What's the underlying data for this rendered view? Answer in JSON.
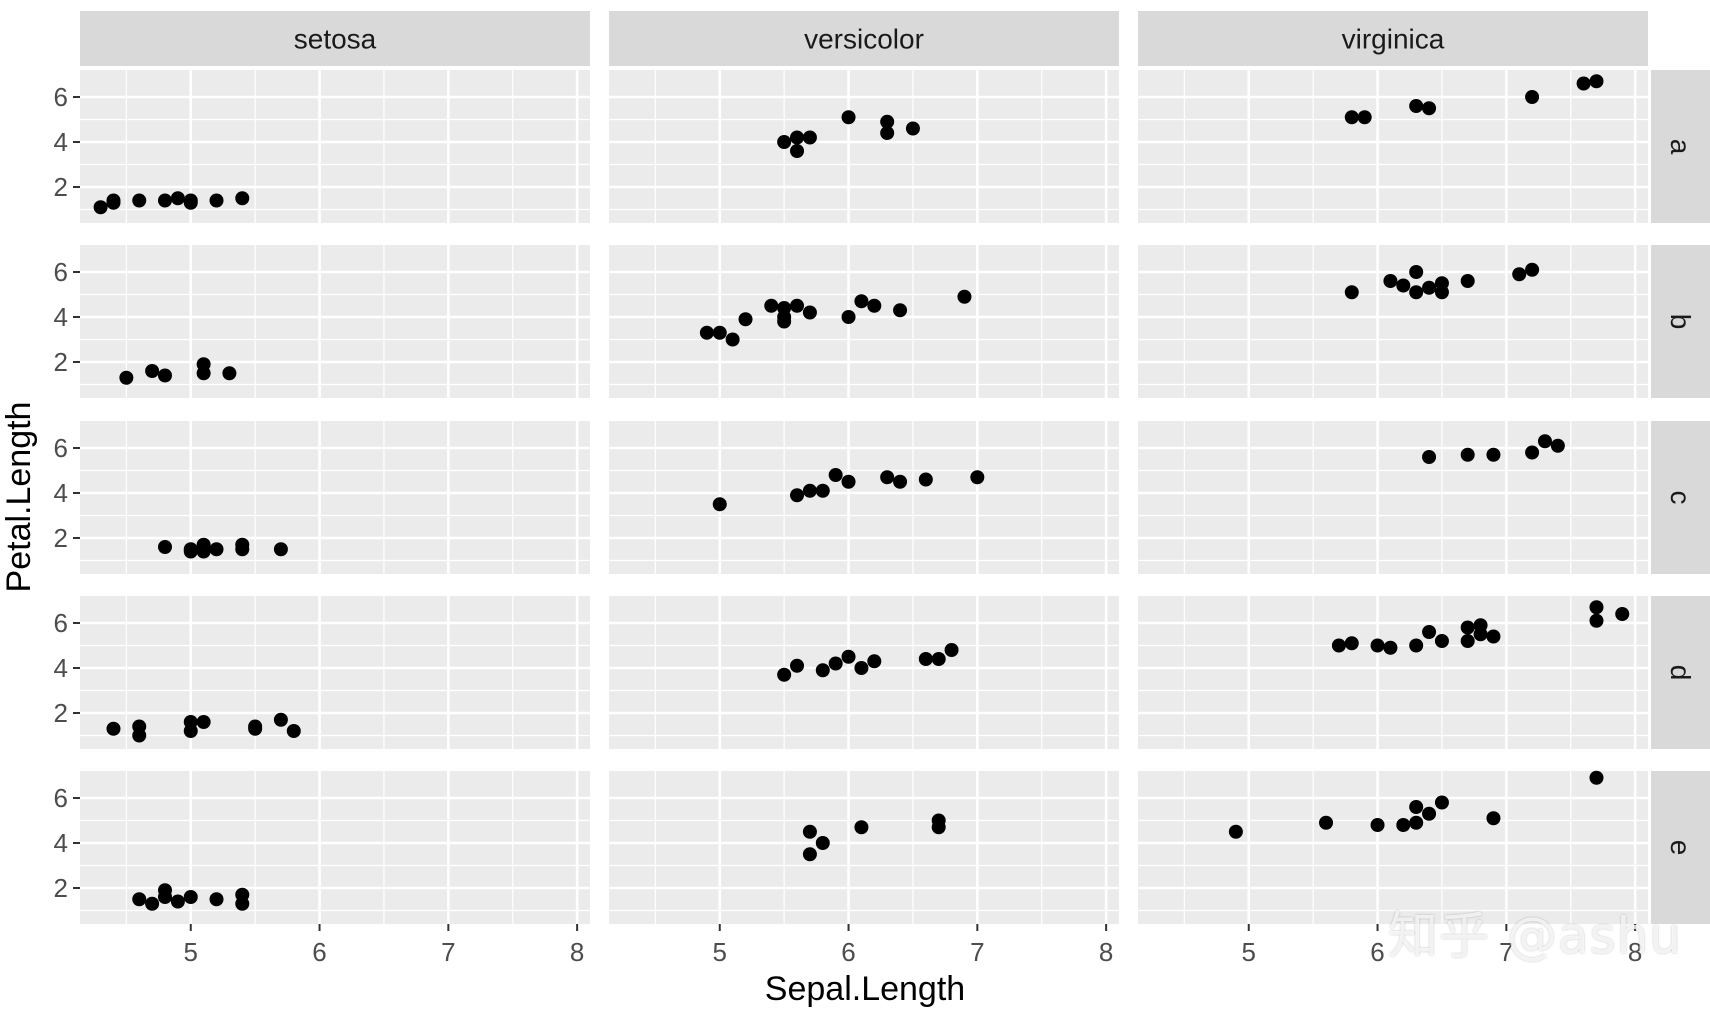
{
  "chart_data": {
    "type": "scatter",
    "xlabel": "Sepal.Length",
    "ylabel": "Petal.Length",
    "col_facets": [
      "setosa",
      "versicolor",
      "virginica"
    ],
    "row_facets": [
      "a",
      "b",
      "c",
      "d",
      "e"
    ],
    "xlim": [
      4.14,
      8.1
    ],
    "ylim": [
      0.4,
      7.2
    ],
    "xticks": [
      5,
      6,
      7,
      8
    ],
    "yticks": [
      2,
      4,
      6
    ],
    "grid": true,
    "point_color": "#000000",
    "panel_background": "#ebebeb",
    "strip_background": "#d9d9d9",
    "panels": [
      {
        "species": "setosa",
        "group": "a",
        "points": [
          [
            4.3,
            1.1
          ],
          [
            4.4,
            1.3
          ],
          [
            4.4,
            1.4
          ],
          [
            4.6,
            1.4
          ],
          [
            4.8,
            1.4
          ],
          [
            4.9,
            1.5
          ],
          [
            5.0,
            1.3
          ],
          [
            5.0,
            1.4
          ],
          [
            5.2,
            1.4
          ],
          [
            5.4,
            1.5
          ]
        ]
      },
      {
        "species": "versicolor",
        "group": "a",
        "points": [
          [
            5.5,
            4.0
          ],
          [
            5.6,
            3.6
          ],
          [
            5.6,
            4.2
          ],
          [
            5.7,
            4.2
          ],
          [
            6.0,
            5.1
          ],
          [
            6.3,
            4.4
          ],
          [
            6.3,
            4.9
          ],
          [
            6.5,
            4.6
          ]
        ]
      },
      {
        "species": "virginica",
        "group": "a",
        "points": [
          [
            5.8,
            5.1
          ],
          [
            5.9,
            5.1
          ],
          [
            6.3,
            5.6
          ],
          [
            6.4,
            5.5
          ],
          [
            7.2,
            6.0
          ],
          [
            7.6,
            6.6
          ],
          [
            7.7,
            6.7
          ]
        ]
      },
      {
        "species": "setosa",
        "group": "b",
        "points": [
          [
            4.5,
            1.3
          ],
          [
            4.7,
            1.6
          ],
          [
            4.8,
            1.4
          ],
          [
            5.1,
            1.5
          ],
          [
            5.1,
            1.9
          ],
          [
            5.3,
            1.5
          ]
        ]
      },
      {
        "species": "versicolor",
        "group": "b",
        "points": [
          [
            4.9,
            3.3
          ],
          [
            5.0,
            3.3
          ],
          [
            5.1,
            3.0
          ],
          [
            5.2,
            3.9
          ],
          [
            5.4,
            4.5
          ],
          [
            5.5,
            3.8
          ],
          [
            5.5,
            4.0
          ],
          [
            5.5,
            4.4
          ],
          [
            5.6,
            4.5
          ],
          [
            5.7,
            4.2
          ],
          [
            6.0,
            4.0
          ],
          [
            6.1,
            4.7
          ],
          [
            6.2,
            4.5
          ],
          [
            6.4,
            4.3
          ],
          [
            6.9,
            4.9
          ]
        ]
      },
      {
        "species": "virginica",
        "group": "b",
        "points": [
          [
            5.8,
            5.1
          ],
          [
            6.1,
            5.6
          ],
          [
            6.2,
            5.4
          ],
          [
            6.3,
            6.0
          ],
          [
            6.3,
            5.1
          ],
          [
            6.4,
            5.3
          ],
          [
            6.5,
            5.5
          ],
          [
            6.5,
            5.1
          ],
          [
            6.7,
            5.6
          ],
          [
            7.1,
            5.9
          ],
          [
            7.2,
            6.1
          ]
        ]
      },
      {
        "species": "setosa",
        "group": "c",
        "points": [
          [
            4.8,
            1.6
          ],
          [
            5.0,
            1.4
          ],
          [
            5.0,
            1.5
          ],
          [
            5.1,
            1.4
          ],
          [
            5.1,
            1.7
          ],
          [
            5.1,
            1.5
          ],
          [
            5.2,
            1.5
          ],
          [
            5.4,
            1.7
          ],
          [
            5.4,
            1.5
          ],
          [
            5.7,
            1.5
          ]
        ]
      },
      {
        "species": "versicolor",
        "group": "c",
        "points": [
          [
            5.0,
            3.5
          ],
          [
            5.6,
            3.9
          ],
          [
            5.7,
            4.1
          ],
          [
            5.8,
            4.1
          ],
          [
            5.9,
            4.8
          ],
          [
            6.0,
            4.5
          ],
          [
            6.3,
            4.7
          ],
          [
            6.4,
            4.5
          ],
          [
            6.6,
            4.6
          ],
          [
            7.0,
            4.7
          ]
        ]
      },
      {
        "species": "virginica",
        "group": "c",
        "points": [
          [
            6.4,
            5.6
          ],
          [
            6.7,
            5.7
          ],
          [
            6.9,
            5.7
          ],
          [
            7.2,
            5.8
          ],
          [
            7.3,
            6.3
          ],
          [
            7.4,
            6.1
          ]
        ]
      },
      {
        "species": "setosa",
        "group": "d",
        "points": [
          [
            4.4,
            1.3
          ],
          [
            4.6,
            1.4
          ],
          [
            4.6,
            1.0
          ],
          [
            5.0,
            1.6
          ],
          [
            5.0,
            1.2
          ],
          [
            5.1,
            1.6
          ],
          [
            5.5,
            1.4
          ],
          [
            5.5,
            1.3
          ],
          [
            5.7,
            1.7
          ],
          [
            5.8,
            1.2
          ]
        ]
      },
      {
        "species": "versicolor",
        "group": "d",
        "points": [
          [
            5.5,
            3.7
          ],
          [
            5.6,
            4.1
          ],
          [
            5.8,
            3.9
          ],
          [
            5.9,
            4.2
          ],
          [
            6.0,
            4.5
          ],
          [
            6.1,
            4.0
          ],
          [
            6.2,
            4.3
          ],
          [
            6.6,
            4.4
          ],
          [
            6.7,
            4.4
          ],
          [
            6.8,
            4.8
          ]
        ]
      },
      {
        "species": "virginica",
        "group": "d",
        "points": [
          [
            5.7,
            5.0
          ],
          [
            5.8,
            5.1
          ],
          [
            6.0,
            5.0
          ],
          [
            6.1,
            4.9
          ],
          [
            6.3,
            5.0
          ],
          [
            6.4,
            5.6
          ],
          [
            6.5,
            5.2
          ],
          [
            6.7,
            5.8
          ],
          [
            6.7,
            5.2
          ],
          [
            6.8,
            5.9
          ],
          [
            6.8,
            5.5
          ],
          [
            6.9,
            5.4
          ],
          [
            7.7,
            6.7
          ],
          [
            7.7,
            6.1
          ],
          [
            7.9,
            6.4
          ]
        ]
      },
      {
        "species": "setosa",
        "group": "e",
        "points": [
          [
            4.6,
            1.5
          ],
          [
            4.7,
            1.3
          ],
          [
            4.8,
            1.6
          ],
          [
            4.8,
            1.9
          ],
          [
            4.9,
            1.4
          ],
          [
            5.0,
            1.6
          ],
          [
            5.2,
            1.5
          ],
          [
            5.4,
            1.7
          ],
          [
            5.4,
            1.3
          ]
        ]
      },
      {
        "species": "versicolor",
        "group": "e",
        "points": [
          [
            5.7,
            4.5
          ],
          [
            5.7,
            3.5
          ],
          [
            5.8,
            4.0
          ],
          [
            6.1,
            4.7
          ],
          [
            6.7,
            5.0
          ],
          [
            6.7,
            4.7
          ]
        ]
      },
      {
        "species": "virginica",
        "group": "e",
        "points": [
          [
            4.9,
            4.5
          ],
          [
            5.6,
            4.9
          ],
          [
            6.0,
            4.8
          ],
          [
            6.2,
            4.8
          ],
          [
            6.3,
            5.6
          ],
          [
            6.3,
            4.9
          ],
          [
            6.4,
            5.3
          ],
          [
            6.5,
            5.8
          ],
          [
            6.9,
            5.1
          ],
          [
            7.7,
            6.9
          ]
        ]
      }
    ]
  },
  "watermark": "知乎 @ashu"
}
